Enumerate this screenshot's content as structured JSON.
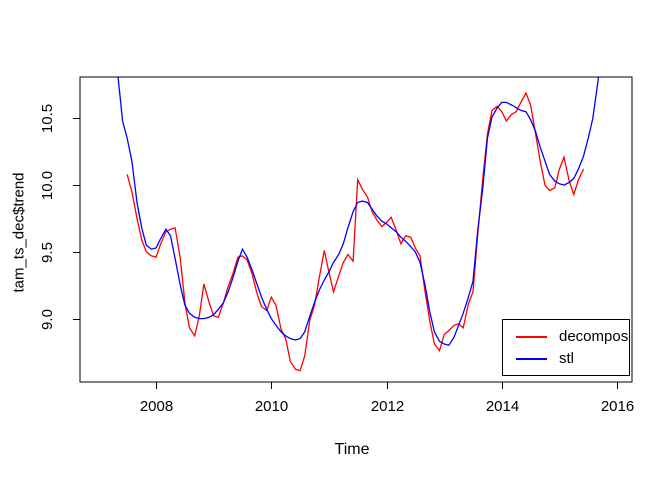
{
  "figure": {
    "background": "#ffffff",
    "axis_color": "#000000",
    "text_color": "#000000"
  },
  "chart_data": {
    "type": "line",
    "title": "",
    "xlabel": "Time",
    "ylabel": "tam_ts_dec$trend",
    "grid": false,
    "xlim": [
      2006.68,
      2016.26
    ],
    "ylim": [
      8.525,
      10.81
    ],
    "x_ticks": {
      "values": [
        2008,
        2010,
        2012,
        2014,
        2016
      ],
      "labels": [
        "2008",
        "2010",
        "2012",
        "2014",
        "2016"
      ]
    },
    "y_ticks": {
      "values": [
        9.0,
        9.5,
        10.0,
        10.5
      ],
      "labels": [
        "9.0",
        "9.5",
        "10.0",
        "10.5"
      ]
    },
    "legend": {
      "position": "bottom-right",
      "entries": [
        {
          "label": "decompos",
          "color": "#ff0000"
        },
        {
          "label": "stl",
          "color": "#0000ff"
        }
      ]
    },
    "series": [
      {
        "name": "decompos",
        "color": "#ff0000",
        "points": [
          [
            2007.5,
            10.08
          ],
          [
            2007.58,
            9.95
          ],
          [
            2007.67,
            9.75
          ],
          [
            2007.75,
            9.59
          ],
          [
            2007.83,
            9.5
          ],
          [
            2007.92,
            9.47
          ],
          [
            2008.0,
            9.46
          ],
          [
            2008.08,
            9.56
          ],
          [
            2008.17,
            9.65
          ],
          [
            2008.25,
            9.67
          ],
          [
            2008.33,
            9.68
          ],
          [
            2008.42,
            9.45
          ],
          [
            2008.5,
            9.12
          ],
          [
            2008.58,
            8.93
          ],
          [
            2008.67,
            8.87
          ],
          [
            2008.75,
            9.02
          ],
          [
            2008.83,
            9.26
          ],
          [
            2008.92,
            9.12
          ],
          [
            2009.0,
            9.02
          ],
          [
            2009.08,
            9.01
          ],
          [
            2009.17,
            9.12
          ],
          [
            2009.25,
            9.24
          ],
          [
            2009.33,
            9.33
          ],
          [
            2009.42,
            9.46
          ],
          [
            2009.5,
            9.47
          ],
          [
            2009.58,
            9.44
          ],
          [
            2009.67,
            9.33
          ],
          [
            2009.75,
            9.19
          ],
          [
            2009.83,
            9.09
          ],
          [
            2009.92,
            9.06
          ],
          [
            2010.0,
            9.16
          ],
          [
            2010.08,
            9.1
          ],
          [
            2010.17,
            8.92
          ],
          [
            2010.25,
            8.85
          ],
          [
            2010.33,
            8.68
          ],
          [
            2010.42,
            8.62
          ],
          [
            2010.5,
            8.61
          ],
          [
            2010.58,
            8.72
          ],
          [
            2010.67,
            8.99
          ],
          [
            2010.75,
            9.1
          ],
          [
            2010.83,
            9.3
          ],
          [
            2010.92,
            9.51
          ],
          [
            2011.0,
            9.35
          ],
          [
            2011.08,
            9.2
          ],
          [
            2011.17,
            9.32
          ],
          [
            2011.25,
            9.42
          ],
          [
            2011.33,
            9.48
          ],
          [
            2011.42,
            9.43
          ],
          [
            2011.5,
            10.04
          ],
          [
            2011.58,
            9.97
          ],
          [
            2011.67,
            9.91
          ],
          [
            2011.75,
            9.8
          ],
          [
            2011.83,
            9.74
          ],
          [
            2011.92,
            9.69
          ],
          [
            2012.0,
            9.72
          ],
          [
            2012.08,
            9.76
          ],
          [
            2012.17,
            9.66
          ],
          [
            2012.25,
            9.56
          ],
          [
            2012.33,
            9.62
          ],
          [
            2012.42,
            9.61
          ],
          [
            2012.5,
            9.53
          ],
          [
            2012.58,
            9.47
          ],
          [
            2012.67,
            9.2
          ],
          [
            2012.75,
            8.98
          ],
          [
            2012.83,
            8.81
          ],
          [
            2012.92,
            8.76
          ],
          [
            2013.0,
            8.88
          ],
          [
            2013.08,
            8.91
          ],
          [
            2013.17,
            8.95
          ],
          [
            2013.25,
            8.96
          ],
          [
            2013.33,
            8.93
          ],
          [
            2013.42,
            9.11
          ],
          [
            2013.5,
            9.2
          ],
          [
            2013.58,
            9.62
          ],
          [
            2013.67,
            10.05
          ],
          [
            2013.75,
            10.38
          ],
          [
            2013.83,
            10.56
          ],
          [
            2013.92,
            10.59
          ],
          [
            2014.0,
            10.55
          ],
          [
            2014.08,
            10.48
          ],
          [
            2014.17,
            10.53
          ],
          [
            2014.25,
            10.55
          ],
          [
            2014.33,
            10.62
          ],
          [
            2014.42,
            10.69
          ],
          [
            2014.5,
            10.6
          ],
          [
            2014.58,
            10.4
          ],
          [
            2014.67,
            10.17
          ],
          [
            2014.75,
            10.0
          ],
          [
            2014.83,
            9.96
          ],
          [
            2014.92,
            9.98
          ],
          [
            2015.0,
            10.12
          ],
          [
            2015.08,
            10.21
          ],
          [
            2015.17,
            10.03
          ],
          [
            2015.25,
            9.93
          ],
          [
            2015.33,
            10.04
          ],
          [
            2015.42,
            10.12
          ]
        ]
      },
      {
        "name": "stl",
        "color": "#0000ff",
        "points": [
          [
            2007.25,
            11.3
          ],
          [
            2007.33,
            10.85
          ],
          [
            2007.42,
            10.48
          ],
          [
            2007.5,
            10.35
          ],
          [
            2007.58,
            10.18
          ],
          [
            2007.67,
            9.87
          ],
          [
            2007.75,
            9.68
          ],
          [
            2007.83,
            9.55
          ],
          [
            2007.92,
            9.52
          ],
          [
            2008.0,
            9.53
          ],
          [
            2008.08,
            9.6
          ],
          [
            2008.17,
            9.67
          ],
          [
            2008.25,
            9.62
          ],
          [
            2008.33,
            9.45
          ],
          [
            2008.42,
            9.25
          ],
          [
            2008.5,
            9.1
          ],
          [
            2008.58,
            9.04
          ],
          [
            2008.67,
            9.01
          ],
          [
            2008.75,
            9.0
          ],
          [
            2008.83,
            9.0
          ],
          [
            2008.92,
            9.01
          ],
          [
            2009.0,
            9.03
          ],
          [
            2009.08,
            9.07
          ],
          [
            2009.17,
            9.12
          ],
          [
            2009.25,
            9.2
          ],
          [
            2009.33,
            9.3
          ],
          [
            2009.42,
            9.43
          ],
          [
            2009.5,
            9.52
          ],
          [
            2009.58,
            9.46
          ],
          [
            2009.67,
            9.36
          ],
          [
            2009.75,
            9.26
          ],
          [
            2009.83,
            9.16
          ],
          [
            2009.92,
            9.07
          ],
          [
            2010.0,
            9.0
          ],
          [
            2010.08,
            8.95
          ],
          [
            2010.17,
            8.9
          ],
          [
            2010.25,
            8.87
          ],
          [
            2010.33,
            8.85
          ],
          [
            2010.42,
            8.84
          ],
          [
            2010.5,
            8.85
          ],
          [
            2010.58,
            8.9
          ],
          [
            2010.67,
            9.02
          ],
          [
            2010.75,
            9.12
          ],
          [
            2010.83,
            9.21
          ],
          [
            2010.92,
            9.29
          ],
          [
            2011.0,
            9.35
          ],
          [
            2011.08,
            9.42
          ],
          [
            2011.17,
            9.48
          ],
          [
            2011.25,
            9.56
          ],
          [
            2011.33,
            9.68
          ],
          [
            2011.42,
            9.8
          ],
          [
            2011.5,
            9.87
          ],
          [
            2011.58,
            9.88
          ],
          [
            2011.67,
            9.87
          ],
          [
            2011.75,
            9.82
          ],
          [
            2011.83,
            9.77
          ],
          [
            2011.92,
            9.73
          ],
          [
            2012.0,
            9.71
          ],
          [
            2012.08,
            9.68
          ],
          [
            2012.17,
            9.65
          ],
          [
            2012.25,
            9.61
          ],
          [
            2012.33,
            9.58
          ],
          [
            2012.42,
            9.54
          ],
          [
            2012.5,
            9.5
          ],
          [
            2012.58,
            9.42
          ],
          [
            2012.67,
            9.25
          ],
          [
            2012.75,
            9.05
          ],
          [
            2012.83,
            8.9
          ],
          [
            2012.92,
            8.83
          ],
          [
            2013.0,
            8.81
          ],
          [
            2013.08,
            8.8
          ],
          [
            2013.17,
            8.86
          ],
          [
            2013.25,
            8.95
          ],
          [
            2013.33,
            9.04
          ],
          [
            2013.42,
            9.16
          ],
          [
            2013.5,
            9.28
          ],
          [
            2013.58,
            9.65
          ],
          [
            2013.67,
            9.98
          ],
          [
            2013.75,
            10.35
          ],
          [
            2013.83,
            10.51
          ],
          [
            2013.92,
            10.58
          ],
          [
            2014.0,
            10.62
          ],
          [
            2014.08,
            10.62
          ],
          [
            2014.17,
            10.6
          ],
          [
            2014.25,
            10.58
          ],
          [
            2014.33,
            10.56
          ],
          [
            2014.42,
            10.55
          ],
          [
            2014.5,
            10.49
          ],
          [
            2014.58,
            10.41
          ],
          [
            2014.67,
            10.28
          ],
          [
            2014.75,
            10.18
          ],
          [
            2014.83,
            10.08
          ],
          [
            2014.92,
            10.03
          ],
          [
            2015.0,
            10.01
          ],
          [
            2015.08,
            10.0
          ],
          [
            2015.17,
            10.02
          ],
          [
            2015.25,
            10.05
          ],
          [
            2015.33,
            10.12
          ],
          [
            2015.42,
            10.22
          ],
          [
            2015.5,
            10.35
          ],
          [
            2015.58,
            10.5
          ],
          [
            2015.67,
            10.78
          ],
          [
            2015.75,
            11.15
          ]
        ]
      }
    ]
  }
}
